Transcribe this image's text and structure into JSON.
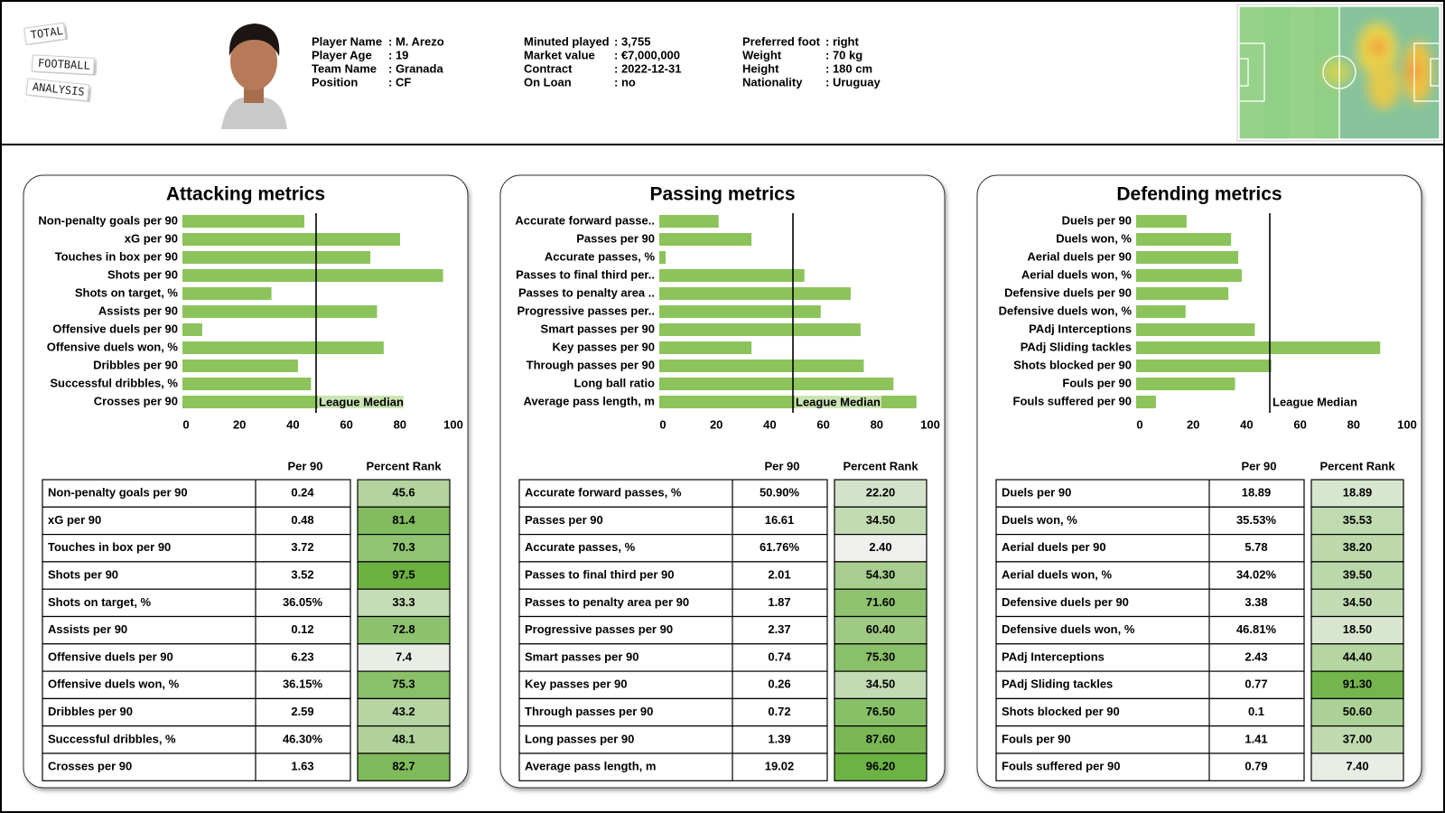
{
  "header": {
    "logo": [
      "TOTAL",
      "FOOTBALL",
      "ANALYSIS"
    ],
    "info": [
      [
        [
          "Player Name",
          ": M. Arezo"
        ],
        [
          "Player Age",
          ": 19"
        ],
        [
          "Team Name",
          ": Granada"
        ],
        [
          "Position",
          ": CF"
        ]
      ],
      [
        [
          "Minuted played",
          ": 3,755"
        ],
        [
          "Market value",
          ": €7,000,000"
        ],
        [
          "Contract",
          ": 2022-12-31"
        ],
        [
          "On Loan",
          ": no"
        ]
      ],
      [
        [
          "Preferred foot",
          ": right"
        ],
        [
          "Weight",
          ": 70 kg"
        ],
        [
          "Height",
          ": 180 cm"
        ],
        [
          "Nationality",
          ": Uruguay"
        ]
      ]
    ]
  },
  "chart_data": [
    {
      "type": "bar",
      "orientation": "horizontal",
      "title": "Attacking metrics",
      "color": "#8cc35a",
      "categories": [
        "Non-penalty goals per 90",
        "xG per 90",
        "Touches in box per 90",
        "Shots per 90",
        "Shots on target, %",
        "Assists per 90",
        "Offensive duels per 90",
        "Offensive duels won, %",
        "Dribbles per 90",
        "Successful dribbles, %",
        "Crosses per 90"
      ],
      "values": [
        45.6,
        81.4,
        70.3,
        97.5,
        33.3,
        72.8,
        7.4,
        75.3,
        43.2,
        48.1,
        82.7
      ],
      "value_labels": [
        "45.6",
        "81.4",
        "70.3",
        "97.5",
        "33.3",
        "72.8",
        "7.4",
        "75.3",
        "43.2",
        "48.1",
        "82.7"
      ],
      "xlim": [
        0,
        100
      ],
      "xticks": [
        0,
        20,
        40,
        60,
        80,
        100
      ],
      "median": {
        "value": 50,
        "label": "League Median"
      }
    },
    {
      "type": "bar",
      "orientation": "horizontal",
      "title": "Passing metrics",
      "color": "#8cc35a",
      "categories": [
        "Accurate forward passe..",
        "Passes per 90",
        "Accurate passes, %",
        "Passes to final third per..",
        "Passes to penalty area ..",
        "Progressive passes per..",
        "Smart passes per 90",
        "Key passes per 90",
        "Through passes per 90",
        "Long ball ratio",
        "Average pass length, m"
      ],
      "values": [
        22.2,
        34.5,
        2.4,
        54.3,
        71.6,
        60.4,
        75.3,
        34.5,
        76.5,
        87.6,
        96.2
      ],
      "value_labels": [
        "22.20",
        "34.50",
        "2.40",
        "54.30",
        "71.60",
        "60.40",
        "75.30",
        "34.50",
        "76.50",
        "87.60",
        "96.20"
      ],
      "xlim": [
        0,
        100
      ],
      "xticks": [
        0,
        20,
        40,
        60,
        80,
        100
      ],
      "median": {
        "value": 50,
        "label": "League Median"
      }
    },
    {
      "type": "bar",
      "orientation": "horizontal",
      "title": "Defending metrics",
      "color": "#8cc35a",
      "categories": [
        "Duels per 90",
        "Duels won, %",
        "Aerial duels per 90",
        "Aerial duels won, %",
        "Defensive duels per 90",
        "Defensive duels won, %",
        "PAdj Interceptions",
        "PAdj Sliding tackles",
        "Shots blocked per 90",
        "Fouls per 90",
        "Fouls suffered per 90"
      ],
      "values": [
        18.89,
        35.53,
        38.2,
        39.5,
        34.5,
        18.5,
        44.4,
        91.3,
        50.6,
        37,
        7.4
      ],
      "value_labels": [
        "18.89",
        "35.53",
        "38.20",
        "39.50",
        "34.50",
        "18.50",
        "44.40",
        "91.30",
        "50.60",
        "37.00",
        "7.40"
      ],
      "xlim": [
        0,
        100
      ],
      "xticks": [
        0,
        20,
        40,
        60,
        80,
        100
      ],
      "median": {
        "value": 50,
        "label": "League Median"
      }
    }
  ],
  "tables": [
    {
      "columns": [
        "Per 90",
        "Percent Rank"
      ],
      "rows": [
        [
          "Non-penalty goals per 90",
          "0.24"
        ],
        [
          "xG per 90",
          "0.48"
        ],
        [
          "Touches in box per 90",
          "3.72"
        ],
        [
          "Shots per 90",
          "3.52"
        ],
        [
          "Shots on target, %",
          "36.05%"
        ],
        [
          "Assists per 90",
          "0.12"
        ],
        [
          "Offensive duels per 90",
          "6.23"
        ],
        [
          "Offensive duels won, %",
          "36.15%"
        ],
        [
          "Dribbles per 90",
          "2.59"
        ],
        [
          "Successful dribbles, %",
          "46.30%"
        ],
        [
          "Crosses per 90",
          "1.63"
        ]
      ]
    },
    {
      "columns": [
        "Per 90",
        "Percent Rank"
      ],
      "rows": [
        [
          "Accurate forward passes, %",
          "50.90%"
        ],
        [
          "Passes per 90",
          "16.61"
        ],
        [
          "Accurate passes, %",
          "61.76%"
        ],
        [
          "Passes to final third per 90",
          "2.01"
        ],
        [
          "Passes to penalty area per 90",
          "1.87"
        ],
        [
          "Progressive passes per 90",
          "2.37"
        ],
        [
          "Smart passes per 90",
          "0.74"
        ],
        [
          "Key passes per 90",
          "0.26"
        ],
        [
          "Through passes per 90",
          "0.72"
        ],
        [
          "Long passes per 90",
          "1.39"
        ],
        [
          "Average pass length, m",
          "19.02"
        ]
      ]
    },
    {
      "columns": [
        "Per 90",
        "Percent Rank"
      ],
      "rows": [
        [
          "Duels per 90",
          "18.89"
        ],
        [
          "Duels won, %",
          "35.53%"
        ],
        [
          "Aerial duels per 90",
          "5.78"
        ],
        [
          "Aerial duels won, %",
          "34.02%"
        ],
        [
          "Defensive duels per 90",
          "3.38"
        ],
        [
          "Defensive duels won, %",
          "46.81%"
        ],
        [
          "PAdj Interceptions",
          "2.43"
        ],
        [
          "PAdj Sliding tackles",
          "0.77"
        ],
        [
          "Shots blocked per 90",
          "0.1"
        ],
        [
          "Fouls per 90",
          "1.41"
        ],
        [
          "Fouls suffered per 90",
          "0.79"
        ]
      ]
    }
  ]
}
